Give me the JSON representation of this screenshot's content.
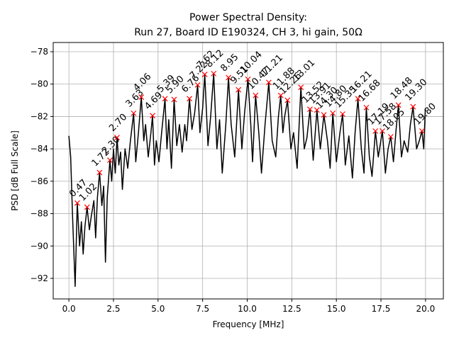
{
  "chart_data": {
    "type": "line",
    "title": "Power Spectral Density:",
    "subtitle": "Run 27, Board ID E190324, CH 3, hi gain, 50Ω",
    "x_label": "Frequency [MHz]",
    "y_label": "PSD [dB Full Scale]",
    "xlim": [
      -0.88,
      21.0
    ],
    "ylim": [
      -93.27,
      -77.43
    ],
    "xticks": [
      {
        "value": 0,
        "label": "0.0"
      },
      {
        "value": 2.5,
        "label": "2.5"
      },
      {
        "value": 5,
        "label": "5.0"
      },
      {
        "value": 7.5,
        "label": "7.5"
      },
      {
        "value": 10,
        "label": "10.0"
      },
      {
        "value": 12.5,
        "label": "12.5"
      },
      {
        "value": 15,
        "label": "15.0"
      },
      {
        "value": 17.5,
        "label": "17.5"
      },
      {
        "value": 20,
        "label": "20.0"
      }
    ],
    "yticks": [
      {
        "value": -92,
        "label": "−92"
      },
      {
        "value": -90,
        "label": "−90"
      },
      {
        "value": -88,
        "label": "−88"
      },
      {
        "value": -86,
        "label": "−86"
      },
      {
        "value": -84,
        "label": "−84"
      },
      {
        "value": -82,
        "label": "−82"
      },
      {
        "value": -80,
        "label": "−80"
      },
      {
        "value": -78,
        "label": "−78"
      }
    ],
    "grid": true,
    "series": [
      {
        "color": "#000000",
        "x": [
          0.0,
          0.1,
          0.2,
          0.3,
          0.35,
          0.47,
          0.6,
          0.7,
          0.8,
          0.9,
          1.02,
          1.15,
          1.25,
          1.4,
          1.5,
          1.6,
          1.72,
          1.85,
          1.95,
          2.05,
          2.15,
          2.3,
          2.4,
          2.5,
          2.6,
          2.7,
          2.8,
          2.9,
          3.0,
          3.15,
          3.3,
          3.45,
          3.63,
          3.75,
          3.9,
          4.06,
          4.2,
          4.3,
          4.45,
          4.6,
          4.69,
          4.8,
          4.9,
          5.05,
          5.2,
          5.39,
          5.5,
          5.6,
          5.75,
          5.9,
          6.05,
          6.2,
          6.35,
          6.5,
          6.6,
          6.76,
          6.9,
          7.05,
          7.22,
          7.35,
          7.5,
          7.62,
          7.8,
          7.95,
          8.12,
          8.3,
          8.45,
          8.6,
          8.8,
          8.95,
          9.1,
          9.3,
          9.51,
          9.7,
          9.85,
          10.04,
          10.2,
          10.3,
          10.47,
          10.65,
          10.8,
          11.0,
          11.21,
          11.4,
          11.6,
          11.75,
          11.88,
          12.0,
          12.1,
          12.26,
          12.45,
          12.6,
          12.8,
          13.01,
          13.2,
          13.35,
          13.52,
          13.7,
          13.91,
          14.1,
          14.3,
          14.5,
          14.65,
          14.8,
          15.0,
          15.2,
          15.35,
          15.5,
          15.7,
          15.9,
          16.05,
          16.21,
          16.4,
          16.55,
          16.68,
          16.85,
          17.0,
          17.19,
          17.35,
          17.58,
          17.75,
          17.9,
          18.05,
          18.2,
          18.35,
          18.48,
          18.65,
          18.8,
          19.0,
          19.15,
          19.3,
          19.5,
          19.65,
          19.8,
          19.9,
          19.99
        ],
        "values": [
          -83.2,
          -84.5,
          -88,
          -91,
          -92.5,
          -87.35,
          -90,
          -88.5,
          -90.5,
          -88.8,
          -87.6,
          -89,
          -88.2,
          -87.2,
          -89.5,
          -87,
          -85.46,
          -87.5,
          -86.3,
          -91,
          -87,
          -84.7,
          -86,
          -84,
          -85.5,
          -83.3,
          -85,
          -84.2,
          -86.5,
          -84,
          -85.2,
          -83.5,
          -81.8,
          -84.8,
          -83,
          -80.8,
          -83.5,
          -82.5,
          -84.5,
          -83,
          -81.95,
          -85,
          -83.5,
          -84.8,
          -83,
          -80.9,
          -84,
          -82.2,
          -85.2,
          -80.95,
          -83.8,
          -82.5,
          -84.2,
          -82.5,
          -83.5,
          -80.9,
          -82.8,
          -81.8,
          -80.05,
          -83,
          -81.5,
          -79.4,
          -83.8,
          -82,
          -79.35,
          -84,
          -82.2,
          -85.5,
          -82.5,
          -79.6,
          -82.5,
          -84.5,
          -80.35,
          -84,
          -81.8,
          -79.7,
          -82.5,
          -84.8,
          -80.7,
          -83,
          -85.5,
          -82.5,
          -79.9,
          -83.5,
          -84.5,
          -82,
          -80.7,
          -83,
          -82,
          -81.0,
          -84,
          -83,
          -85.2,
          -80.2,
          -84,
          -83.3,
          -81.55,
          -84.7,
          -81.6,
          -84,
          -81.9,
          -83.5,
          -85.2,
          -81.8,
          -84.8,
          -83,
          -81.85,
          -85,
          -83.2,
          -85.8,
          -83,
          -80.9,
          -84,
          -85.5,
          -81.45,
          -84.5,
          -85.7,
          -82.9,
          -84.5,
          -82.9,
          -85.5,
          -84,
          -83.25,
          -84.8,
          -82.8,
          -81.3,
          -84.5,
          -83.5,
          -84.2,
          -82.5,
          -81.4,
          -84,
          -83.5,
          -82.9,
          -84,
          -81.5
        ]
      }
    ],
    "peaks": {
      "color": "#ff0000",
      "x": [
        0.47,
        1.02,
        1.72,
        2.3,
        2.7,
        3.63,
        4.06,
        4.69,
        5.39,
        5.9,
        6.76,
        7.22,
        7.62,
        8.12,
        8.95,
        9.51,
        10.04,
        10.47,
        11.21,
        11.88,
        12.26,
        13.01,
        13.52,
        13.91,
        14.3,
        14.8,
        15.35,
        16.21,
        16.68,
        17.19,
        17.58,
        18.05,
        18.48,
        19.3,
        19.8
      ],
      "values": [
        -87.35,
        -87.6,
        -85.46,
        -84.7,
        -83.3,
        -81.8,
        -80.8,
        -81.95,
        -80.9,
        -80.95,
        -80.9,
        -80.05,
        -79.4,
        -79.35,
        -79.6,
        -80.35,
        -79.7,
        -80.7,
        -79.9,
        -80.7,
        -81.0,
        -80.2,
        -81.55,
        -81.6,
        -81.9,
        -81.8,
        -81.85,
        -80.9,
        -81.45,
        -82.9,
        -82.9,
        -83.25,
        -81.3,
        -81.4,
        -82.9
      ],
      "labels": [
        "0.47",
        "1.02",
        "1.72",
        "2.30",
        "2.70",
        "3.63",
        "4.06",
        "4.69",
        "5.39",
        "5.90",
        "6.76",
        "7.22",
        "7.62",
        "8.12",
        "8.95",
        "9.51",
        "10.04",
        "10.47",
        "11.21",
        "11.88",
        "12.26",
        "13.01",
        "13.52",
        "13.91",
        "14.30",
        "14.80",
        "15.35",
        "16.21",
        "16.68",
        "17.19",
        "17.58",
        "18.05",
        "18.48",
        "19.30",
        "19.80"
      ]
    }
  }
}
